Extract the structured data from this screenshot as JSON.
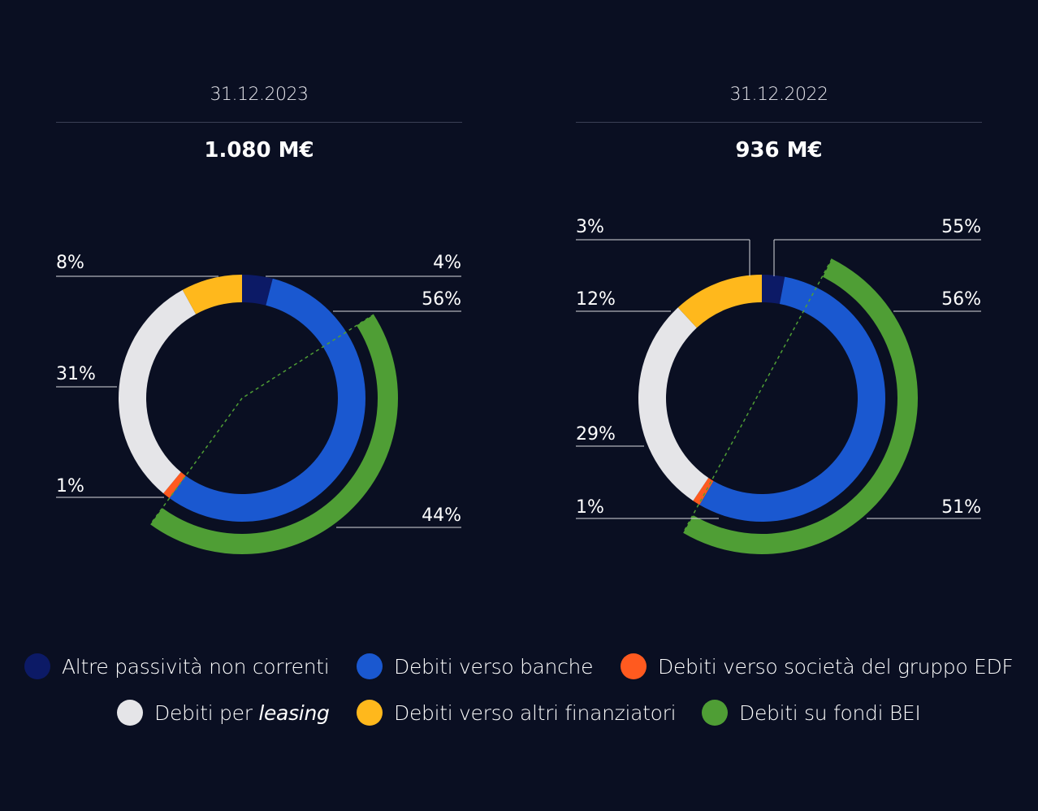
{
  "colors": {
    "altre": "#0c1a66",
    "banche": "#1a58d0",
    "edf": "#ff5a1f",
    "leasing": "#e5e5e8",
    "altri_fin": "#ffb81c",
    "bei": "#4f9e35",
    "line": "#d8d8dd",
    "divider": "#3a3f55"
  },
  "legend": [
    {
      "key": "altre",
      "label": "Altre passività non correnti"
    },
    {
      "key": "banche",
      "label": "Debiti verso banche"
    },
    {
      "key": "edf",
      "label": "Debiti verso società del gruppo EDF"
    },
    {
      "key": "leasing",
      "label_prefix": "Debiti per ",
      "label_em": "leasing"
    },
    {
      "key": "altri_fin",
      "label": "Debiti verso altri finanziatori"
    },
    {
      "key": "bei",
      "label": "Debiti su fondi BEI"
    }
  ],
  "chart_data": [
    {
      "type": "pie",
      "date": "31.12.2023",
      "total": "1.080 M€",
      "slices": [
        {
          "name": "Altre passività non correnti",
          "value": 4,
          "label": "4%"
        },
        {
          "name": "Debiti verso banche",
          "value": 56,
          "label": "56%"
        },
        {
          "name": "Debiti verso società del gruppo EDF",
          "value": 1,
          "label": "1%"
        },
        {
          "name": "Debiti per leasing",
          "value": 31,
          "label": "31%"
        },
        {
          "name": "Debiti verso altri finanziatori",
          "value": 8,
          "label": "8%"
        }
      ],
      "sub_share": {
        "name": "Debiti su fondi BEI",
        "value": 44,
        "label": "44%",
        "of": "Debiti verso banche"
      }
    },
    {
      "type": "pie",
      "date": "31.12.2022",
      "total": "936 M€",
      "slices": [
        {
          "name": "Altre passività non correnti",
          "value": 3,
          "label": "3%"
        },
        {
          "name": "Debiti verso banche",
          "value": 56,
          "label": "56%"
        },
        {
          "name": "Debiti verso società del gruppo EDF",
          "value": 1,
          "label": "1%"
        },
        {
          "name": "Debiti per leasing",
          "value": 29,
          "label": "29%"
        },
        {
          "name": "Debiti verso altri finanziatori",
          "value": 12,
          "label": "12%"
        }
      ],
      "sub_share": {
        "name": "Debiti su fondi BEI",
        "value": 51,
        "label": "51%",
        "of": "Debiti verso banche"
      },
      "extra_labels": [
        {
          "label": "55%"
        }
      ]
    }
  ]
}
